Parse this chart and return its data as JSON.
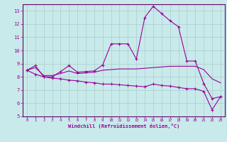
{
  "xlabel": "Windchill (Refroidissement éolien,°C)",
  "bg_color": "#c8eaea",
  "line_color": "#990099",
  "grid_color": "#aacccc",
  "axis_color": "#660066",
  "text_color": "#990099",
  "xlim": [
    -0.5,
    23.5
  ],
  "ylim": [
    5,
    13.5
  ],
  "xticks": [
    0,
    1,
    2,
    3,
    4,
    5,
    6,
    7,
    8,
    9,
    10,
    11,
    12,
    13,
    14,
    15,
    16,
    17,
    18,
    19,
    20,
    21,
    22,
    23
  ],
  "yticks": [
    5,
    6,
    7,
    8,
    9,
    10,
    11,
    12,
    13
  ],
  "line1_y": [
    8.5,
    8.85,
    8.0,
    8.0,
    8.4,
    8.85,
    8.35,
    8.4,
    8.45,
    8.9,
    10.5,
    10.5,
    10.5,
    9.35,
    12.5,
    13.35,
    12.8,
    12.25,
    11.8,
    9.2,
    9.2,
    7.5,
    6.35,
    6.5
  ],
  "line2_y": [
    8.5,
    8.7,
    8.1,
    8.1,
    8.25,
    8.45,
    8.25,
    8.3,
    8.35,
    8.5,
    8.55,
    8.6,
    8.6,
    8.6,
    8.65,
    8.7,
    8.75,
    8.8,
    8.8,
    8.8,
    8.8,
    8.55,
    7.85,
    7.55
  ],
  "line3_y": [
    8.5,
    8.2,
    8.0,
    7.9,
    7.85,
    7.75,
    7.7,
    7.6,
    7.55,
    7.45,
    7.45,
    7.4,
    7.35,
    7.3,
    7.25,
    7.45,
    7.35,
    7.3,
    7.2,
    7.1,
    7.1,
    6.9,
    5.5,
    6.5
  ]
}
